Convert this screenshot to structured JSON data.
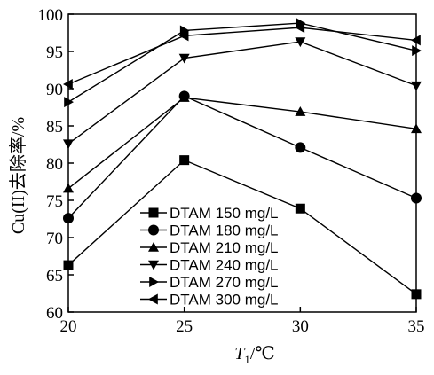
{
  "chart_data": {
    "type": "line",
    "xlabel": "T",
    "xlabel_sub": "1",
    "xlabel_unit": "/℃",
    "ylabel": "Cu(II)去除率/%",
    "x": [
      20,
      25,
      30,
      35
    ],
    "xlim": [
      20,
      35
    ],
    "ylim": [
      60,
      100
    ],
    "xticks": [
      "20",
      "25",
      "30",
      "35"
    ],
    "yticks": [
      "60",
      "65",
      "70",
      "75",
      "80",
      "85",
      "90",
      "95",
      "100"
    ],
    "grid": false,
    "legend_position": "bottom-center",
    "series": [
      {
        "name": "DTAM 150 mg/L",
        "marker": "square",
        "values": [
          66.3,
          80.4,
          73.9,
          62.4
        ]
      },
      {
        "name": "DTAM 180 mg/L",
        "marker": "circle",
        "values": [
          72.6,
          89.0,
          82.1,
          75.3
        ]
      },
      {
        "name": "DTAM 210 mg/L",
        "marker": "triangle-up",
        "values": [
          76.6,
          88.8,
          86.9,
          84.6
        ]
      },
      {
        "name": "DTAM 240 mg/L",
        "marker": "triangle-down",
        "values": [
          82.6,
          94.1,
          96.3,
          90.4
        ]
      },
      {
        "name": "DTAM 270 mg/L",
        "marker": "triangle-right",
        "values": [
          88.2,
          97.8,
          98.8,
          95.1
        ]
      },
      {
        "name": "DTAM 300 mg/L",
        "marker": "triangle-left",
        "values": [
          90.6,
          97.1,
          98.2,
          96.5
        ]
      }
    ]
  }
}
